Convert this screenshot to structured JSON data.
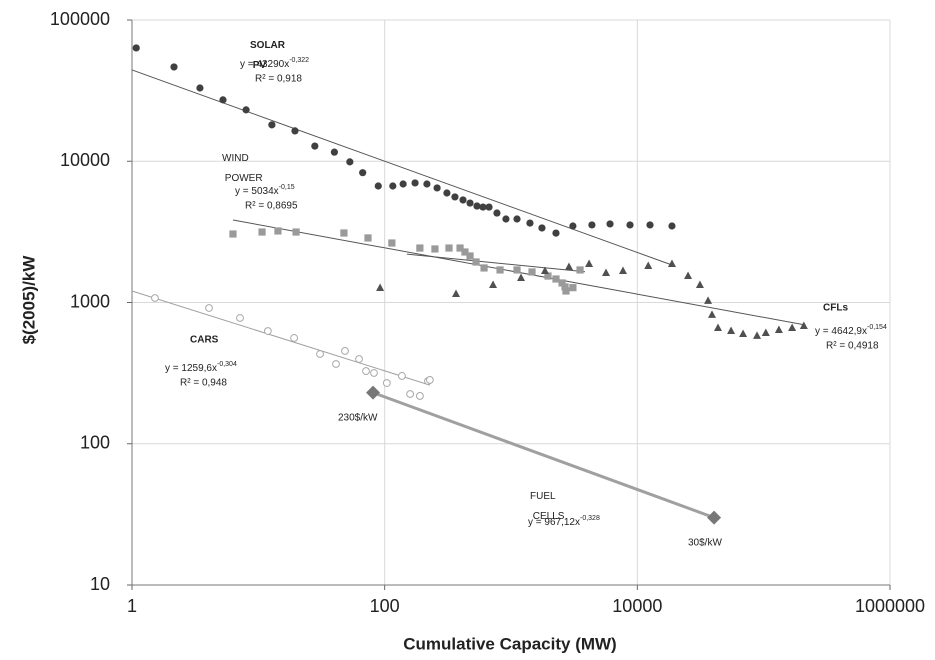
{
  "chart_data": {
    "type": "scatter",
    "xlabel": "Cumulative Capacity (MW)",
    "ylabel": "$(2005)/kW",
    "xscale": "log",
    "yscale": "log",
    "xlim": [
      1,
      1000000
    ],
    "ylim": [
      10,
      100000
    ],
    "xticks": [
      1,
      100,
      10000,
      1000000
    ],
    "yticks": [
      10,
      100,
      1000,
      10000,
      100000
    ],
    "grid": true,
    "series": [
      {
        "name": "SOLAR PV",
        "marker": "circle",
        "color": "#404040",
        "x": [
          1.08,
          2.15,
          3.45,
          5.25,
          8,
          12.8,
          19.5,
          28,
          40,
          53,
          67,
          89,
          116,
          140,
          174,
          216,
          260,
          311,
          360,
          417,
          474,
          538,
          600,
          670,
          774,
          912,
          1116,
          1413,
          1758,
          2270,
          3090,
          4370,
          6080,
          8750,
          12600,
          18800
        ],
        "values": [
          63400,
          46500,
          33000,
          27200,
          23100,
          18100,
          16400,
          12800,
          11600,
          9900,
          8300,
          6680,
          6680,
          6900,
          7020,
          6900,
          6470,
          5960,
          5590,
          5320,
          5060,
          4820,
          4740,
          4740,
          4300,
          3900,
          3900,
          3650,
          3370,
          3100,
          3480,
          3540,
          3600,
          3540,
          3540,
          3480
        ],
        "equation": "y = 43290x",
        "exponent": "-0,322",
        "r2": "R² = 0,918"
      },
      {
        "name": "WIND POWER",
        "marker": "square",
        "color": "#9a9a9a",
        "x": [
          6.3,
          10.7,
          14.3,
          19.9,
          47.6,
          73.8,
          114,
          190,
          250,
          323,
          395,
          432,
          474,
          529,
          612,
          819,
          1116,
          1467,
          1963,
          2270,
          2535,
          2678,
          2725,
          3090,
          3520
        ],
        "values": [
          3055,
          3155,
          3210,
          3155,
          3105,
          2864,
          2637,
          2430,
          2393,
          2430,
          2430,
          2278,
          2135,
          1936,
          1756,
          1700,
          1700,
          1645,
          1540,
          1467,
          1375,
          1289,
          1206,
          1274,
          1700
        ],
        "equation": "y = 5034x",
        "exponent": "-0,15",
        "r2": "R² = 0,8695"
      },
      {
        "name": "CFLs",
        "marker": "triangle",
        "color": "#505050",
        "x": [
          92,
          367,
          721,
          1200,
          1858,
          2877,
          4150,
          5650,
          7700,
          12200,
          18800,
          25200,
          31300,
          36300,
          39000,
          43500,
          55200,
          68700,
          88600,
          104000,
          132000,
          168000,
          208000
        ],
        "values": [
          1267,
          1148,
          1330,
          1490,
          1670,
          1783,
          1873,
          1618,
          1670,
          1812,
          1873,
          1540,
          1330,
          1026,
          817,
          660,
          629,
          598,
          580,
          608,
          639,
          660,
          682
        ],
        "equation": "y = 4642,9x",
        "exponent": "-0,154",
        "r2": "R² = 0,4918"
      },
      {
        "name": "CARS",
        "marker": "open-circle",
        "color": "#a8a8a8",
        "x": [
          1.52,
          4.07,
          7.16,
          11.9,
          19.2,
          30.8,
          41.2,
          48.5,
          62.7,
          71.2,
          82.3,
          104,
          137,
          159,
          190,
          220,
          228
        ],
        "values": [
          1076,
          914,
          777,
          628,
          561,
          432,
          367,
          454,
          398,
          327,
          317,
          269,
          302,
          225,
          218,
          278,
          283
        ],
        "equation": "y = 1259,6x",
        "exponent": "-0,304",
        "r2": "R² = 0,948"
      },
      {
        "name": "FUEL CELLS",
        "marker": "diamond",
        "color": "#777777",
        "line_color": "#a0a0a0",
        "x": [
          80.9,
          40500
        ],
        "values": [
          230,
          30
        ],
        "value_labels": [
          "230$/kW",
          "30$/kW"
        ],
        "equation": "y = 967,12x",
        "exponent": "-0,328"
      }
    ],
    "trendlines": [
      {
        "color": "#555555",
        "x": [
          1,
          18800
        ],
        "values": [
          44300,
          1843
        ]
      },
      {
        "color": "#555555",
        "x": [
          6.3,
          214000
        ],
        "values": [
          3838,
          693
        ]
      },
      {
        "color": "#555555",
        "x": [
          150,
          3850
        ],
        "values": [
          2200,
          1650
        ]
      },
      {
        "color": "#a0a0a0",
        "x": [
          1,
          228
        ],
        "values": [
          1206,
          260
        ]
      }
    ]
  }
}
